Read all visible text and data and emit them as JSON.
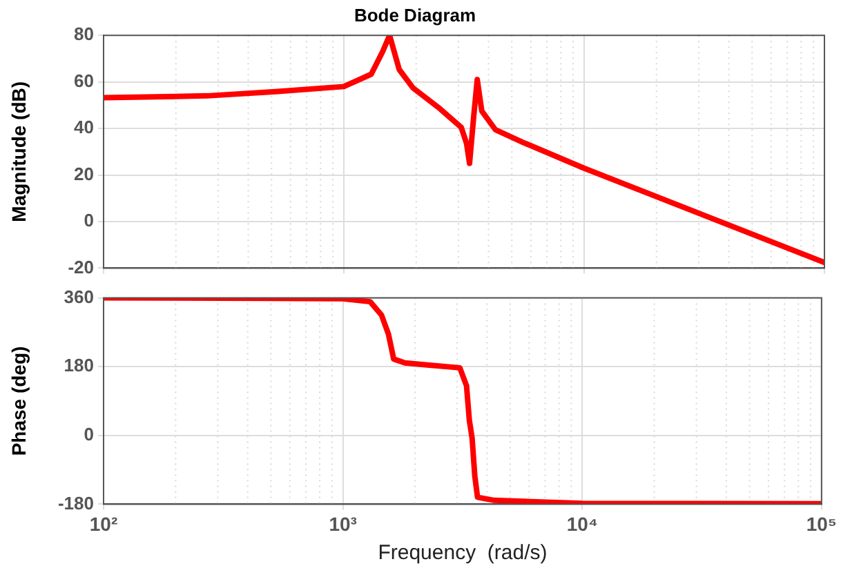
{
  "chart_data": [
    {
      "type": "line",
      "title": "Bode Diagram",
      "ylabel": "Magnitude (dB)",
      "log": "x",
      "grid": true,
      "legend": false,
      "tick_labels": "y",
      "marker": "none",
      "line_style": "solid",
      "xlim": [
        100,
        100000
      ],
      "xticks": [
        100,
        1000,
        10000,
        100000
      ],
      "ylim": [
        -20,
        80
      ],
      "yticks": [
        -20,
        0,
        20,
        40,
        60,
        80
      ],
      "x": [
        100,
        150,
        270,
        520,
        1000,
        1300,
        1450,
        1550,
        1700,
        1940,
        2510,
        3080,
        3240,
        3335,
        3470,
        3590,
        3750,
        4270,
        5570,
        10000,
        100000
      ],
      "series": [
        {
          "color": "#ff0000",
          "values": [
            53.2,
            53.5,
            54,
            55.8,
            58,
            63.3,
            73,
            80,
            65.3,
            57.4,
            48.5,
            40.5,
            33.6,
            25,
            45,
            61,
            47.5,
            39.5,
            34,
            22.9,
            -17.6
          ]
        }
      ]
    },
    {
      "type": "line",
      "xlabel": "Frequency  (rad/s)",
      "ylabel": "Phase (deg)",
      "log": "x",
      "grid": true,
      "legend": false,
      "marker": "none",
      "line_style": "solid",
      "xlim": [
        100,
        100000
      ],
      "xticks": [
        {
          "value": 100,
          "label": "10²"
        },
        {
          "value": 1000,
          "label": "10³"
        },
        {
          "value": 10000,
          "label": "10⁴"
        },
        {
          "value": 100000,
          "label": "10⁵"
        }
      ],
      "ylim": [
        -180,
        360
      ],
      "yticks": [
        -180,
        0,
        180,
        360
      ],
      "x": [
        100,
        500,
        1000,
        1300,
        1450,
        1550,
        1630,
        1815,
        2210,
        3080,
        3285,
        3375,
        3467,
        3557,
        3652,
        4280,
        10000,
        100000
      ],
      "series": [
        {
          "color": "#ff0000",
          "values": [
            360,
            359,
            358,
            350,
            315,
            265,
            200,
            190,
            185,
            177,
            130,
            40,
            -8,
            -106,
            -162,
            -170,
            -178,
            -179
          ]
        }
      ]
    }
  ]
}
